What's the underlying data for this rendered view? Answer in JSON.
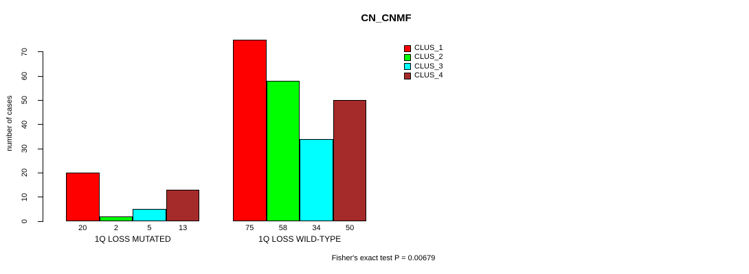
{
  "chart_data": {
    "type": "bar",
    "title": "CN_CNMF",
    "ylabel": "number of cases",
    "xlabel": "",
    "groups": [
      {
        "label": "1Q LOSS MUTATED",
        "values": [
          20,
          2,
          5,
          13
        ]
      },
      {
        "label": "1Q LOSS WILD-TYPE",
        "values": [
          75,
          58,
          34,
          50
        ]
      }
    ],
    "series": [
      {
        "name": "CLUS_1",
        "color": "#FF0000"
      },
      {
        "name": "CLUS_2",
        "color": "#00FF00"
      },
      {
        "name": "CLUS_3",
        "color": "#00FFFF"
      },
      {
        "name": "CLUS_4",
        "color": "#A52A2A"
      }
    ],
    "yticks": [
      0,
      10,
      20,
      30,
      40,
      50,
      60,
      70
    ],
    "ylim": [
      0,
      75
    ],
    "grid": false,
    "legend_position": "top-right",
    "bar_value_labels_shown": true,
    "annotation": "Fisher's exact test P = 0.00679",
    "background": "#FFFFFF",
    "axis_color": "#000000",
    "text_color": "#000000"
  }
}
